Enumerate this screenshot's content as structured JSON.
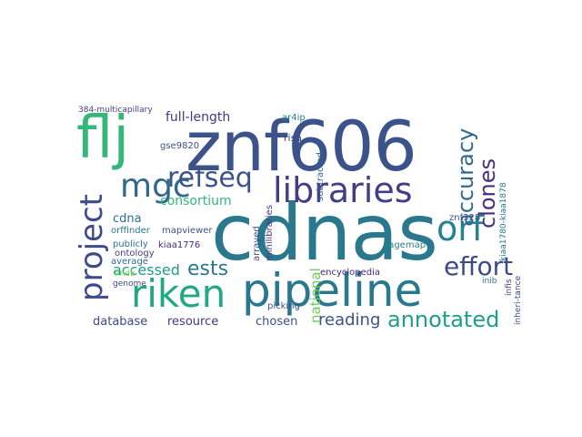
{
  "cloud": {
    "words": [
      {
        "text": "cdnas",
        "weight": 1.0,
        "color": "#2a788e"
      },
      {
        "text": "znf606",
        "weight": 0.9,
        "color": "#3b528b"
      },
      {
        "text": "flj",
        "weight": 0.72,
        "color": "#35b779"
      },
      {
        "text": "pipeline",
        "weight": 0.62,
        "color": "#2a788e"
      },
      {
        "text": "riken",
        "weight": 0.52,
        "color": "#22a884"
      },
      {
        "text": "project",
        "weight": 0.5,
        "color": "#3e4a89"
      },
      {
        "text": "libraries",
        "weight": 0.48,
        "color": "#433e85"
      },
      {
        "text": "mgc",
        "weight": 0.45,
        "color": "#31688e"
      },
      {
        "text": "orf",
        "weight": 0.44,
        "color": "#26828e"
      },
      {
        "text": "refseq",
        "weight": 0.38,
        "color": "#3b528b"
      },
      {
        "text": "accuracy",
        "weight": 0.33,
        "color": "#31688e"
      },
      {
        "text": "clones",
        "weight": 0.3,
        "color": "#46327e"
      },
      {
        "text": "effort",
        "weight": 0.3,
        "color": "#3e4a89"
      },
      {
        "text": "annotated",
        "weight": 0.29,
        "color": "#1f9e89"
      },
      {
        "text": "ests",
        "weight": 0.28,
        "color": "#2a788e"
      },
      {
        "text": "reading",
        "weight": 0.24,
        "color": "#3b528b"
      },
      {
        "text": "accessed",
        "weight": 0.22,
        "color": "#1f9e89"
      },
      {
        "text": "consortium",
        "weight": 0.2,
        "color": "#35b779"
      },
      {
        "text": "national",
        "weight": 0.2,
        "color": "#6ece58"
      },
      {
        "text": "full-length",
        "weight": 0.19,
        "color": "#443a83"
      },
      {
        "text": "cdna",
        "weight": 0.18,
        "color": "#2c728e"
      },
      {
        "text": "database",
        "weight": 0.18,
        "color": "#3e4a89"
      },
      {
        "text": "resource",
        "weight": 0.18,
        "color": "#443983"
      },
      {
        "text": "chosen",
        "weight": 0.18,
        "color": "#3b528b"
      },
      {
        "text": "encyclopedia",
        "weight": 0.14,
        "color": "#482878"
      },
      {
        "text": "sagemap",
        "weight": 0.14,
        "color": "#25838e"
      },
      {
        "text": "subtracted",
        "weight": 0.14,
        "color": "#31688e"
      },
      {
        "text": "minilibraries",
        "weight": 0.13,
        "color": "#443983"
      },
      {
        "text": "arrayed",
        "weight": 0.13,
        "color": "#3e4a89"
      },
      {
        "text": "orffinder",
        "weight": 0.12,
        "color": "#2a788e"
      },
      {
        "text": "mapviewer",
        "weight": 0.12,
        "color": "#3b528b"
      },
      {
        "text": "ontology",
        "weight": 0.12,
        "color": "#433e85"
      },
      {
        "text": "genome",
        "weight": 0.11,
        "color": "#3e4a89"
      },
      {
        "text": "publicly",
        "weight": 0.12,
        "color": "#2c728e"
      },
      {
        "text": "average",
        "weight": 0.12,
        "color": "#31688e"
      },
      {
        "text": "picking",
        "weight": 0.12,
        "color": "#3b528b"
      },
      {
        "text": "kiaa1776",
        "weight": 0.12,
        "color": "#472d7b"
      },
      {
        "text": "gse9820",
        "weight": 0.12,
        "color": "#3b528b"
      },
      {
        "text": "risa",
        "weight": 0.12,
        "color": "#3e4a89"
      },
      {
        "text": "ar4ip",
        "weight": 0.12,
        "color": "#25838e"
      },
      {
        "text": "384-multicapillary",
        "weight": 0.11,
        "color": "#433e85"
      },
      {
        "text": "kiaa1780-kiaa1878",
        "weight": 0.11,
        "color": "#2a788e"
      },
      {
        "text": "znf328",
        "weight": 0.11,
        "color": "#3b528b"
      },
      {
        "text": "infis",
        "weight": 0.1,
        "color": "#443983"
      },
      {
        "text": "inheri-tance",
        "weight": 0.1,
        "color": "#3e4a89"
      },
      {
        "text": "inib",
        "weight": 0.1,
        "color": "#2a788e"
      },
      {
        "text": "nndb",
        "weight": 0.1,
        "color": "#7ad151"
      }
    ]
  }
}
